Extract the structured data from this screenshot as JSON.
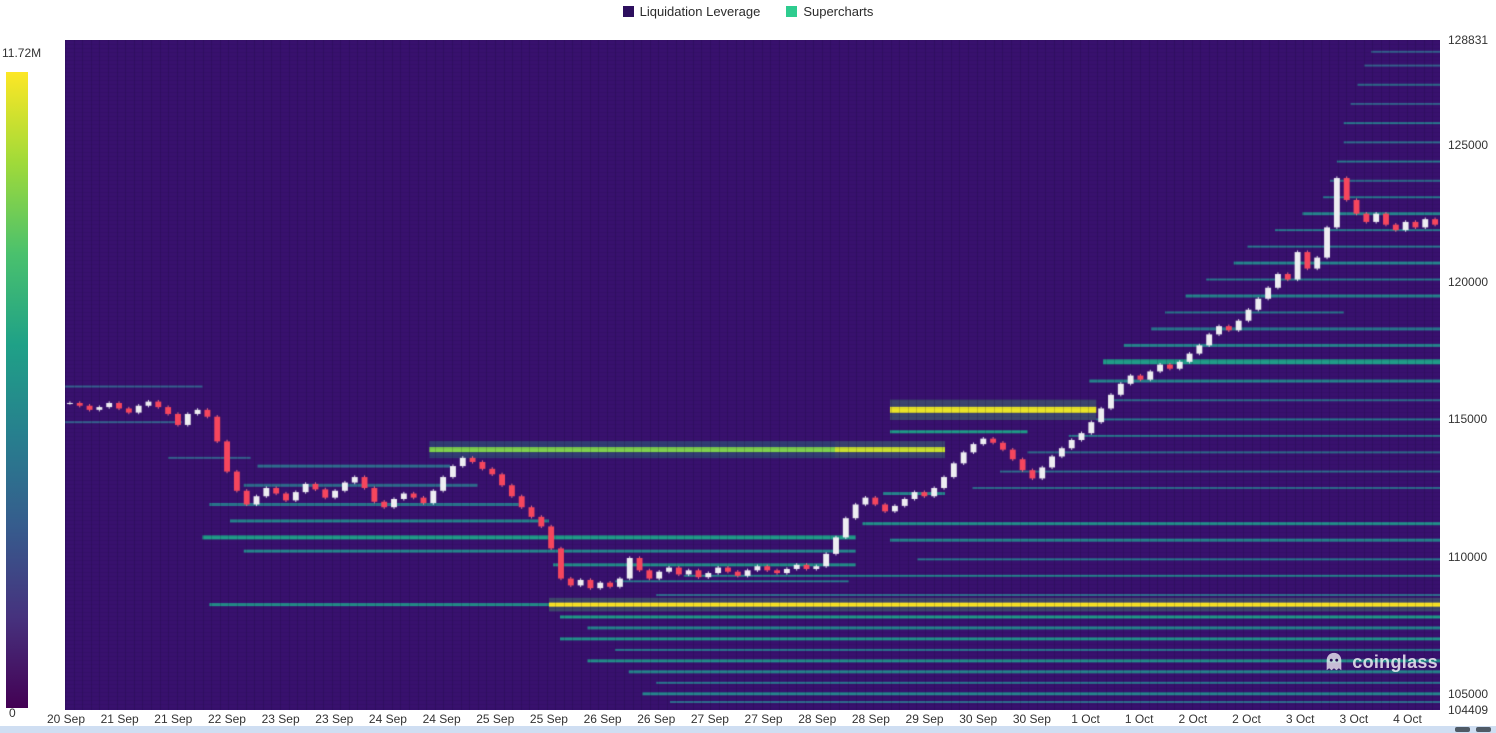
{
  "watermark": "coinglass",
  "chart_data": {
    "type": "heatmap",
    "title": "",
    "legend_items": [
      {
        "label": "Liquidation Leverage",
        "color": "#2d0f5e"
      },
      {
        "label": "Supercharts",
        "color": "#2ecc8f"
      }
    ],
    "colorbar": {
      "max_label": "11.72M",
      "min_label": "0"
    },
    "x_ticks": [
      "20 Sep",
      "21 Sep",
      "21 Sep",
      "22 Sep",
      "23 Sep",
      "23 Sep",
      "24 Sep",
      "24 Sep",
      "25 Sep",
      "25 Sep",
      "26 Sep",
      "26 Sep",
      "27 Sep",
      "27 Sep",
      "28 Sep",
      "28 Sep",
      "29 Sep",
      "30 Sep",
      "30 Sep",
      "1 Oct",
      "1 Oct",
      "2 Oct",
      "2 Oct",
      "3 Oct",
      "3 Oct",
      "4 Oct"
    ],
    "y_ticks": [
      128831,
      125000,
      120000,
      115000,
      110000,
      105000,
      104409
    ],
    "ylim": [
      104409,
      128831
    ],
    "grid": false,
    "background": "#38116e",
    "viridis": [
      "#440154",
      "#46327e",
      "#365c8d",
      "#277f8e",
      "#1fa187",
      "#4ac16d",
      "#a0da39",
      "#fde725"
    ],
    "candle_up": "#eeeef2",
    "candle_down": "#f6465d",
    "bands_format": [
      "price",
      "x_start_fraction",
      "x_end_fraction",
      "intensity_0_to_1",
      "thickness_px"
    ],
    "bands": [
      [
        108250,
        0.352,
        1.0,
        1.0,
        4
      ],
      [
        108250,
        0.105,
        0.352,
        0.5,
        3
      ],
      [
        113900,
        0.265,
        0.56,
        0.8,
        5
      ],
      [
        113900,
        0.56,
        0.64,
        0.92,
        5
      ],
      [
        115350,
        0.6,
        0.75,
        0.97,
        6
      ],
      [
        114550,
        0.6,
        0.7,
        0.55,
        3
      ],
      [
        110700,
        0.1,
        0.575,
        0.55,
        4
      ],
      [
        110200,
        0.13,
        0.575,
        0.45,
        3
      ],
      [
        111300,
        0.12,
        0.352,
        0.45,
        3
      ],
      [
        111900,
        0.105,
        0.33,
        0.4,
        3
      ],
      [
        112600,
        0.13,
        0.3,
        0.35,
        3
      ],
      [
        113300,
        0.14,
        0.28,
        0.35,
        3
      ],
      [
        109700,
        0.355,
        0.575,
        0.5,
        3
      ],
      [
        109100,
        0.4,
        0.57,
        0.4,
        2
      ],
      [
        111200,
        0.58,
        1.0,
        0.5,
        3
      ],
      [
        110600,
        0.6,
        1.0,
        0.45,
        3
      ],
      [
        109900,
        0.62,
        1.0,
        0.4,
        2
      ],
      [
        109300,
        0.45,
        1.0,
        0.45,
        2
      ],
      [
        108600,
        0.43,
        1.0,
        0.35,
        2
      ],
      [
        107800,
        0.36,
        1.0,
        0.55,
        3
      ],
      [
        107400,
        0.38,
        1.0,
        0.45,
        3
      ],
      [
        107000,
        0.36,
        1.0,
        0.5,
        3
      ],
      [
        106600,
        0.4,
        1.0,
        0.4,
        2
      ],
      [
        106200,
        0.38,
        1.0,
        0.5,
        3
      ],
      [
        105800,
        0.41,
        1.0,
        0.45,
        3
      ],
      [
        105400,
        0.43,
        1.0,
        0.4,
        2
      ],
      [
        105000,
        0.42,
        1.0,
        0.45,
        3
      ],
      [
        104700,
        0.44,
        1.0,
        0.35,
        2
      ],
      [
        112300,
        0.595,
        0.64,
        0.45,
        3
      ],
      [
        112500,
        0.66,
        1.0,
        0.35,
        2
      ],
      [
        113100,
        0.68,
        1.0,
        0.35,
        2
      ],
      [
        113800,
        0.7,
        1.0,
        0.35,
        2
      ],
      [
        114400,
        0.73,
        1.0,
        0.4,
        2
      ],
      [
        115000,
        0.75,
        1.0,
        0.4,
        2
      ],
      [
        115700,
        0.76,
        1.0,
        0.35,
        2
      ],
      [
        116400,
        0.745,
        1.0,
        0.45,
        3
      ],
      [
        117100,
        0.755,
        1.0,
        0.55,
        5
      ],
      [
        117700,
        0.77,
        1.0,
        0.45,
        3
      ],
      [
        118300,
        0.79,
        1.0,
        0.4,
        3
      ],
      [
        118900,
        0.8,
        0.93,
        0.4,
        2
      ],
      [
        119500,
        0.815,
        1.0,
        0.45,
        3
      ],
      [
        120100,
        0.83,
        1.0,
        0.4,
        2
      ],
      [
        120700,
        0.85,
        1.0,
        0.45,
        3
      ],
      [
        121300,
        0.86,
        1.0,
        0.4,
        2
      ],
      [
        121900,
        0.88,
        1.0,
        0.4,
        2
      ],
      [
        122500,
        0.9,
        1.0,
        0.45,
        3
      ],
      [
        123100,
        0.915,
        1.0,
        0.4,
        2
      ],
      [
        123700,
        0.92,
        1.0,
        0.35,
        2
      ],
      [
        124400,
        0.925,
        1.0,
        0.4,
        2
      ],
      [
        125100,
        0.93,
        1.0,
        0.35,
        2
      ],
      [
        125800,
        0.93,
        1.0,
        0.4,
        2
      ],
      [
        126500,
        0.935,
        1.0,
        0.3,
        2
      ],
      [
        127200,
        0.94,
        1.0,
        0.35,
        2
      ],
      [
        127900,
        0.945,
        1.0,
        0.3,
        2
      ],
      [
        128400,
        0.95,
        1.0,
        0.3,
        2
      ],
      [
        116200,
        0.0,
        0.1,
        0.3,
        2
      ],
      [
        114900,
        0.0,
        0.085,
        0.3,
        2
      ],
      [
        113600,
        0.075,
        0.135,
        0.3,
        2
      ]
    ],
    "price_series": [
      115600,
      115500,
      115350,
      115450,
      115600,
      115400,
      115250,
      115500,
      115650,
      115450,
      115200,
      114800,
      115200,
      115350,
      115100,
      114200,
      113100,
      112400,
      111900,
      112200,
      112500,
      112300,
      112050,
      112350,
      112650,
      112450,
      112150,
      112400,
      112700,
      112900,
      112500,
      112000,
      111800,
      112100,
      112300,
      112150,
      111950,
      112400,
      112900,
      113300,
      113600,
      113450,
      113200,
      113000,
      112600,
      112200,
      111800,
      111450,
      111100,
      110300,
      109200,
      108950,
      109150,
      108850,
      109050,
      108900,
      109200,
      109950,
      109500,
      109200,
      109450,
      109600,
      109350,
      109500,
      109250,
      109400,
      109600,
      109450,
      109300,
      109500,
      109650,
      109500,
      109400,
      109550,
      109700,
      109550,
      109650,
      110100,
      110700,
      111400,
      111900,
      112150,
      111900,
      111650,
      111850,
      112100,
      112350,
      112200,
      112500,
      112900,
      113400,
      113800,
      114100,
      114300,
      114150,
      113900,
      113550,
      113150,
      112850,
      113250,
      113650,
      113950,
      114250,
      114500,
      114900,
      115400,
      115900,
      116300,
      116600,
      116450,
      116750,
      117000,
      116850,
      117100,
      117400,
      117700,
      118100,
      118400,
      118250,
      118600,
      119000,
      119400,
      119800,
      120300,
      120100,
      121100,
      120500,
      120900,
      122000,
      123800,
      123000,
      122500,
      122200,
      122500,
      122100,
      121900,
      122200,
      122000,
      122300,
      122100
    ]
  }
}
